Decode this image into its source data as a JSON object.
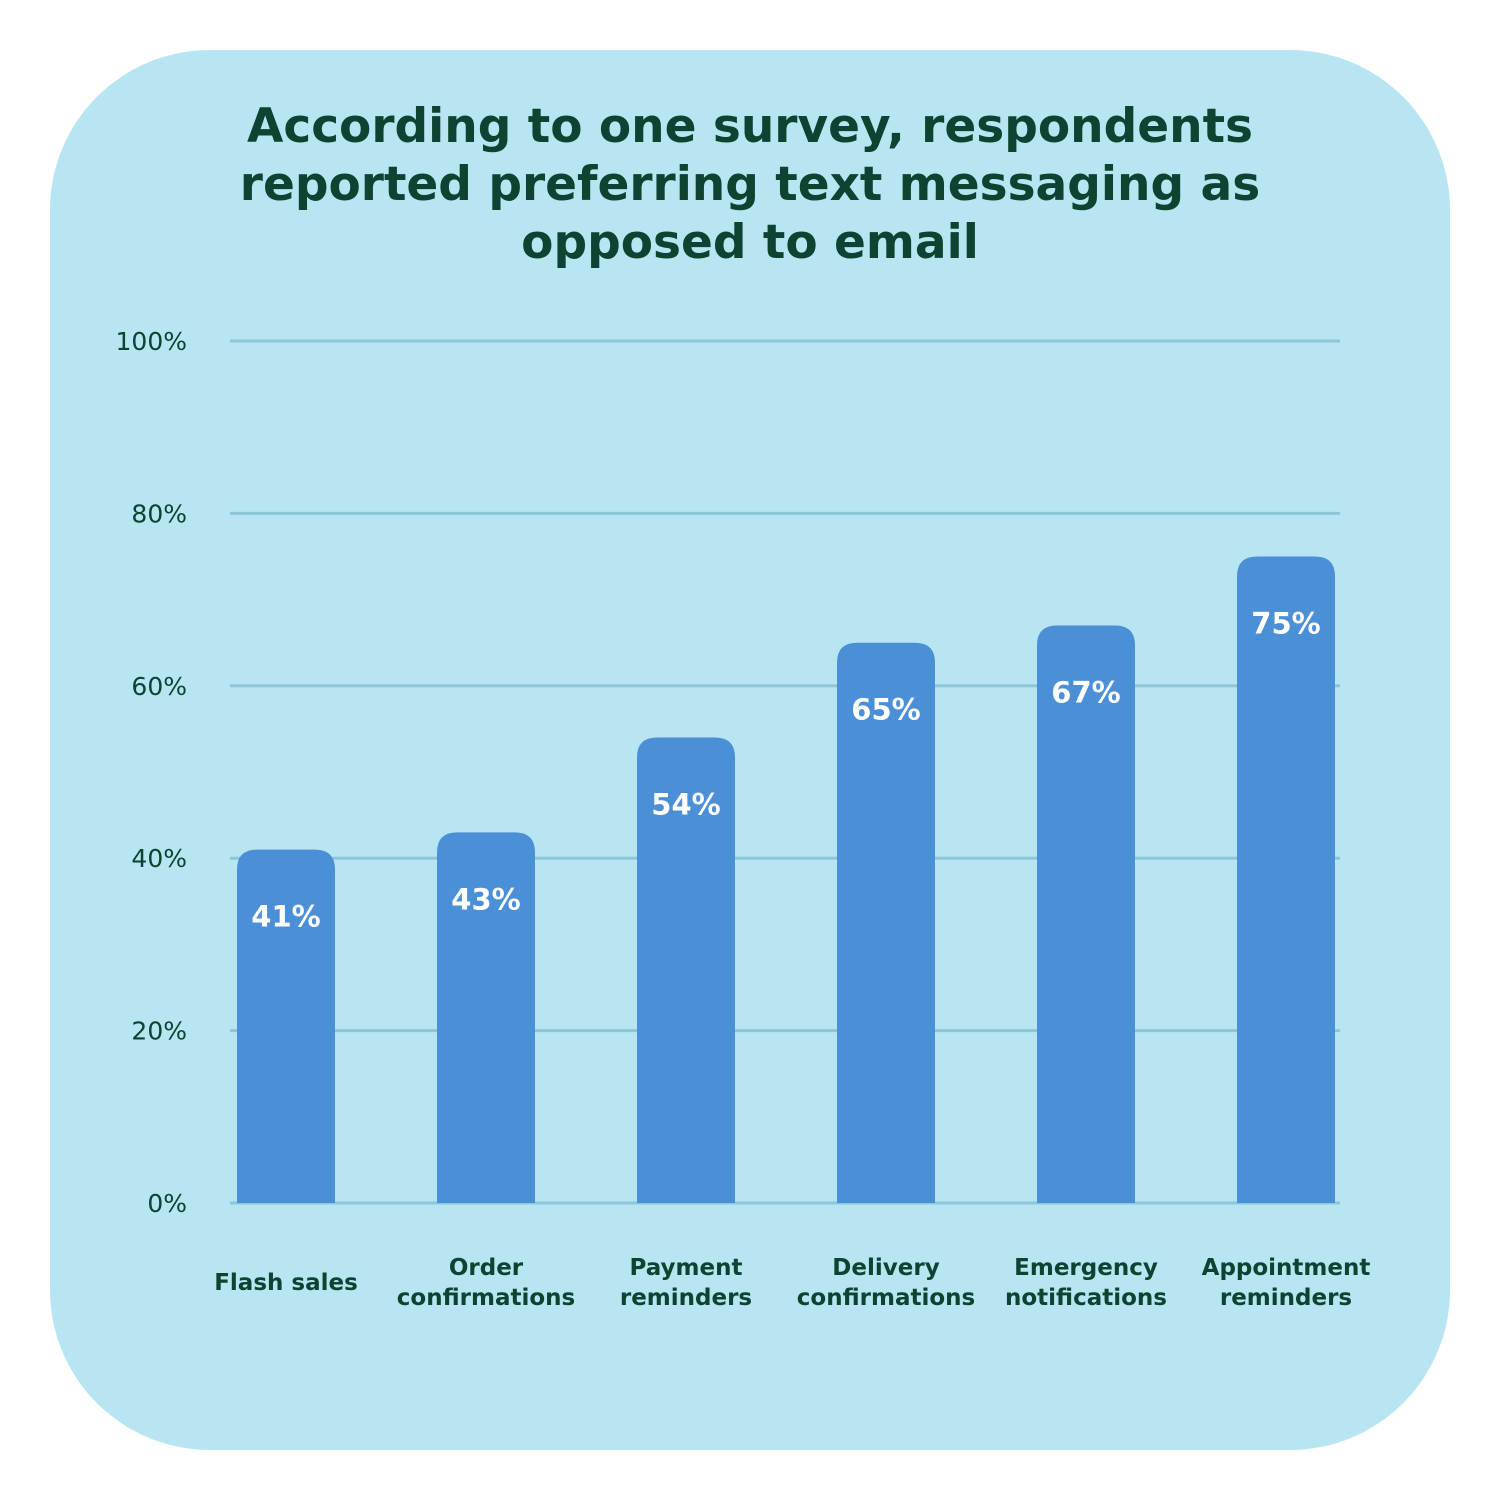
{
  "chart_data": {
    "type": "bar",
    "title": "According to one survey, respondents reported preferring text messaging as opposed to email",
    "categories": [
      [
        "Flash sales"
      ],
      [
        "Order",
        "confirmations"
      ],
      [
        "Payment",
        "reminders"
      ],
      [
        "Delivery",
        "confirmations"
      ],
      [
        "Emergency",
        "notifications"
      ],
      [
        "Appointment",
        "reminders"
      ]
    ],
    "values": [
      41,
      43,
      54,
      65,
      67,
      75
    ],
    "data_labels": [
      "41%",
      "43%",
      "54%",
      "65%",
      "67%",
      "75%"
    ],
    "yticks": [
      0,
      20,
      40,
      60,
      80,
      100
    ],
    "ytick_labels": [
      "0%",
      "20%",
      "40%",
      "60%",
      "80%",
      "100%"
    ],
    "ylim": [
      0,
      100
    ],
    "grid": true,
    "colors": {
      "bar": "#4b8fd6",
      "gridline": "#8cc6d9",
      "background": "#b8e5f2",
      "title": "#0d4330"
    }
  }
}
